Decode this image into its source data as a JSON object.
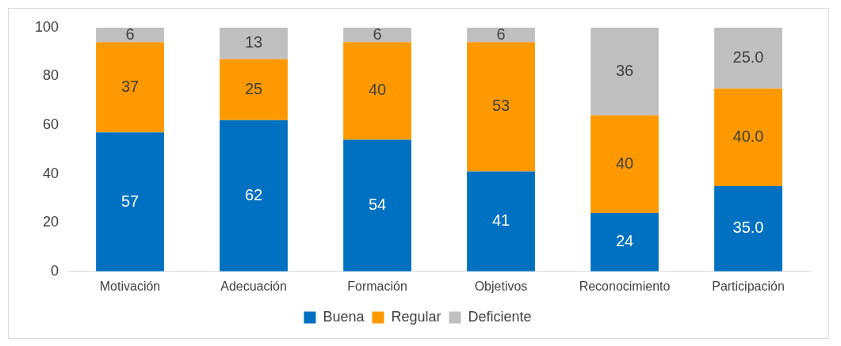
{
  "chart_data": {
    "type": "bar",
    "stacked": true,
    "categories": [
      "Motivación",
      "Adecuación",
      "Formación",
      "Objetivos",
      "Reconocimiento",
      "Participación"
    ],
    "series": [
      {
        "name": "Buena",
        "color": "#0070c0",
        "values": [
          57,
          62,
          54,
          41,
          24,
          35
        ],
        "value_labels": [
          "57",
          "62",
          "54",
          "41",
          "24",
          "35.0"
        ]
      },
      {
        "name": "Regular",
        "color": "#ff9900",
        "values": [
          37,
          25,
          40,
          53,
          40,
          40
        ],
        "value_labels": [
          "37",
          "25",
          "40",
          "53",
          "40",
          "40.0"
        ]
      },
      {
        "name": "Deficiente",
        "color": "#bfbfbf",
        "values": [
          6,
          13,
          6,
          6,
          36,
          25
        ],
        "value_labels": [
          "6",
          "13",
          "6",
          "6",
          "36",
          "25.0"
        ]
      }
    ],
    "ylim": [
      0,
      100
    ],
    "yticks": [
      0,
      20,
      40,
      60,
      80,
      100
    ],
    "grid": false,
    "legend": "bottom"
  }
}
